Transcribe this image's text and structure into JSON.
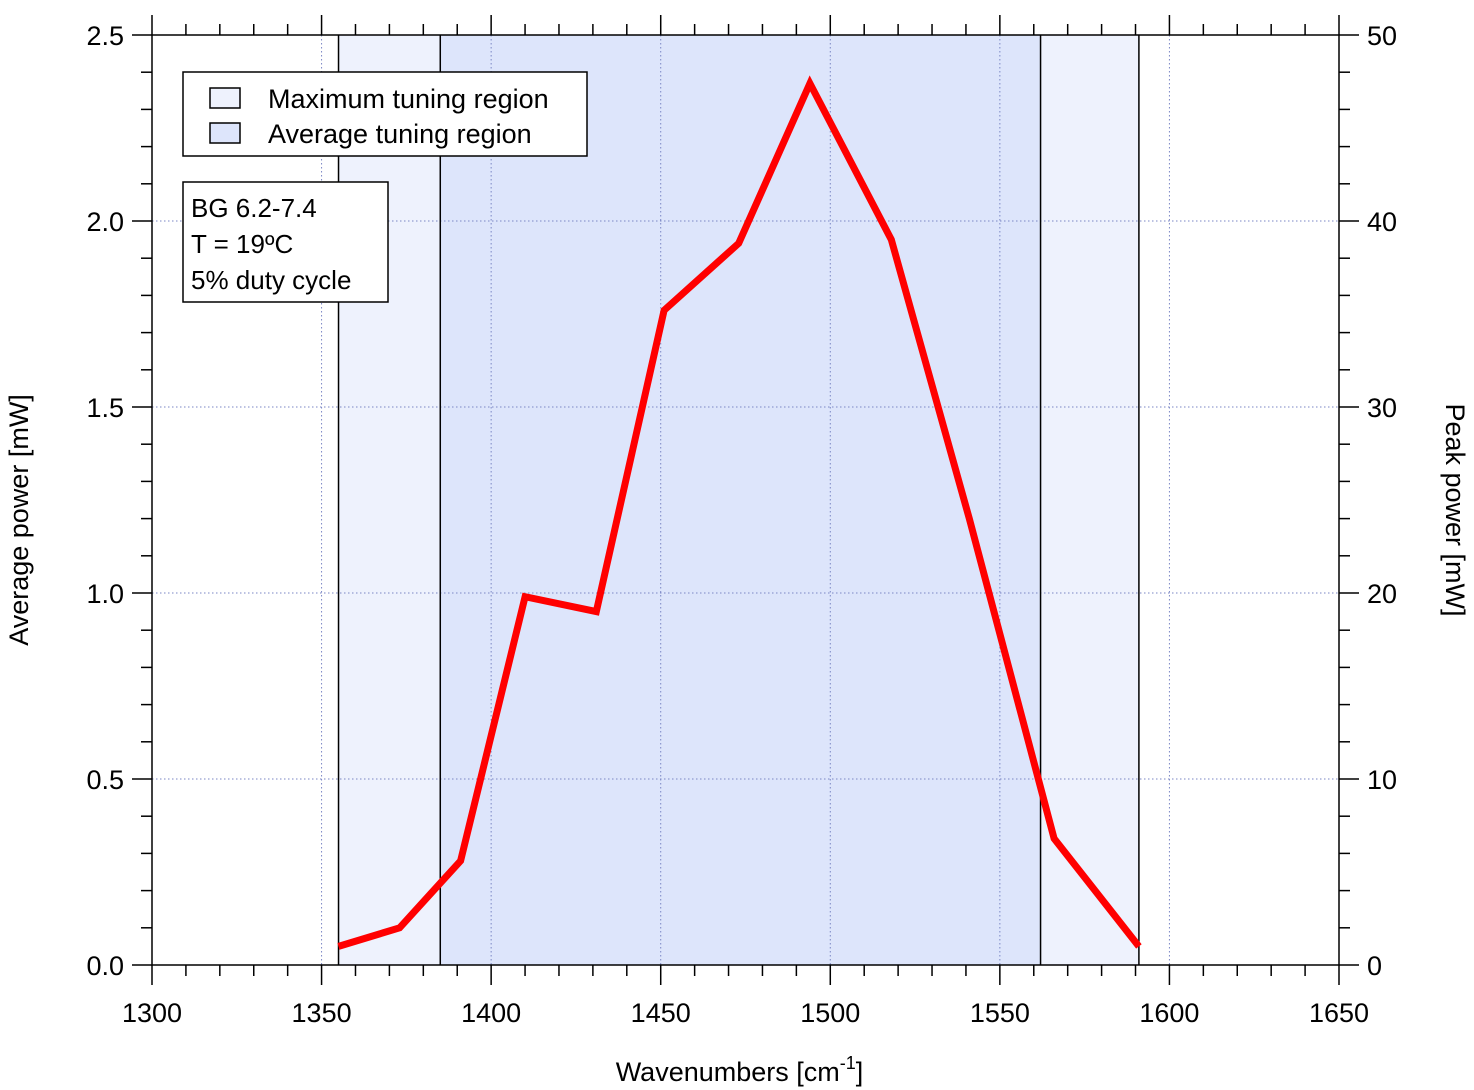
{
  "chart_data": {
    "type": "line",
    "xlabel": "Wavenumbers [cm",
    "xlabel_superscript": "-1",
    "xlabel_suffix": "]",
    "ylabel": "Average power [mW]",
    "y2label": "Peak power [mW]",
    "xlim": [
      1300,
      1650
    ],
    "ylim": [
      0,
      2.5
    ],
    "y2lim": [
      0,
      50
    ],
    "x_ticks": [
      "1300",
      "1350",
      "1400",
      "1450",
      "1500",
      "1550",
      "1600",
      "1650"
    ],
    "y_ticks": [
      "0.0",
      "0.5",
      "1.0",
      "1.5",
      "2.0",
      "2.5"
    ],
    "y2_ticks": [
      "0",
      "10",
      "20",
      "30",
      "40",
      "50"
    ],
    "grid": "dotted",
    "series": [
      {
        "color": "#ff0000",
        "x": [
          1355,
          1373,
          1391,
          1410,
          1431,
          1451,
          1473,
          1494,
          1518,
          1541,
          1566,
          1591
        ],
        "y": [
          0.05,
          0.1,
          0.28,
          0.99,
          0.95,
          1.76,
          1.94,
          2.37,
          1.95,
          1.2,
          0.34,
          0.05
        ]
      }
    ],
    "regions": [
      {
        "label": "Maximum tuning region",
        "x0": 1355,
        "x1": 1591,
        "color": "#eef2fd"
      },
      {
        "label": "Average tuning region",
        "x0": 1385,
        "x1": 1562,
        "color": "#dde5fb"
      }
    ],
    "legend_position": "top-left",
    "annotation_lines": [
      "BG 6.2-7.4",
      "T = 19ºC",
      "5% duty cycle"
    ]
  }
}
